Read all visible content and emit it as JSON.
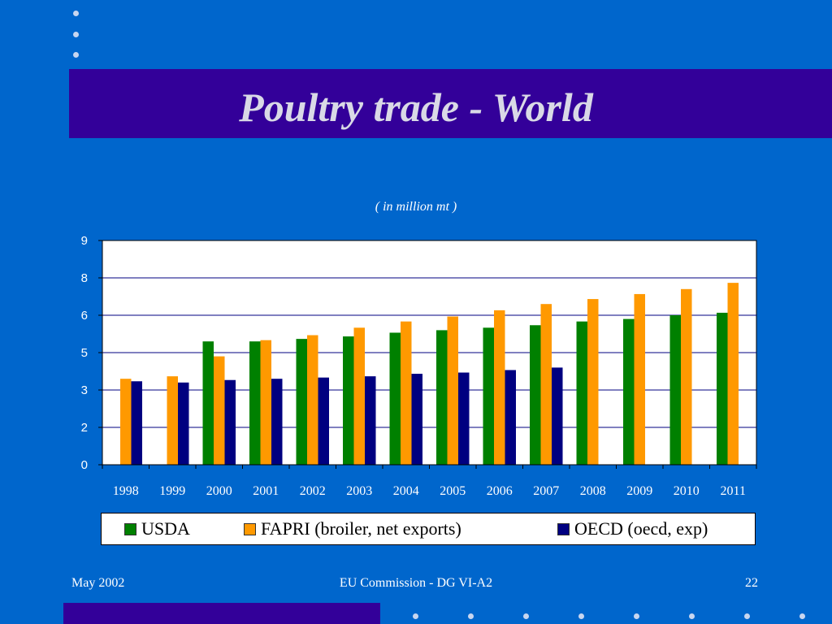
{
  "slide": {
    "title": "Poultry trade - World",
    "footer_left": "May 2002",
    "footer_center": "EU Commission - DG VI-A2",
    "footer_right": "22"
  },
  "colors": {
    "background": "#0066cc",
    "band": "#330099",
    "usda": "#008000",
    "fapri": "#ff9900",
    "oecd": "#000080"
  },
  "chart_data": {
    "type": "bar",
    "subtitle": "( in million mt )",
    "categories": [
      "1998",
      "1999",
      "2000",
      "2001",
      "2002",
      "2003",
      "2004",
      "2005",
      "2006",
      "2007",
      "2008",
      "2009",
      "2010",
      "2011"
    ],
    "y_ticks": [
      "0",
      "2",
      "3",
      "5",
      "6",
      "8",
      "9"
    ],
    "ylim": [
      0,
      9
    ],
    "grid": true,
    "legend_position": "bottom",
    "series": [
      {
        "name": "USDA",
        "values": [
          null,
          null,
          4.95,
          4.95,
          5.05,
          5.15,
          5.3,
          5.4,
          5.5,
          5.6,
          5.75,
          5.85,
          6.0,
          6.1
        ]
      },
      {
        "name": "FAPRI (broiler, net exports)",
        "values": [
          3.45,
          3.55,
          4.35,
          5.0,
          5.2,
          5.5,
          5.75,
          5.95,
          6.2,
          6.45,
          6.65,
          6.85,
          7.05,
          7.3
        ]
      },
      {
        "name": "OECD (oecd, exp)",
        "values": [
          3.35,
          3.3,
          3.4,
          3.45,
          3.5,
          3.55,
          3.65,
          3.7,
          3.8,
          3.9,
          null,
          null,
          null,
          null
        ]
      }
    ]
  }
}
